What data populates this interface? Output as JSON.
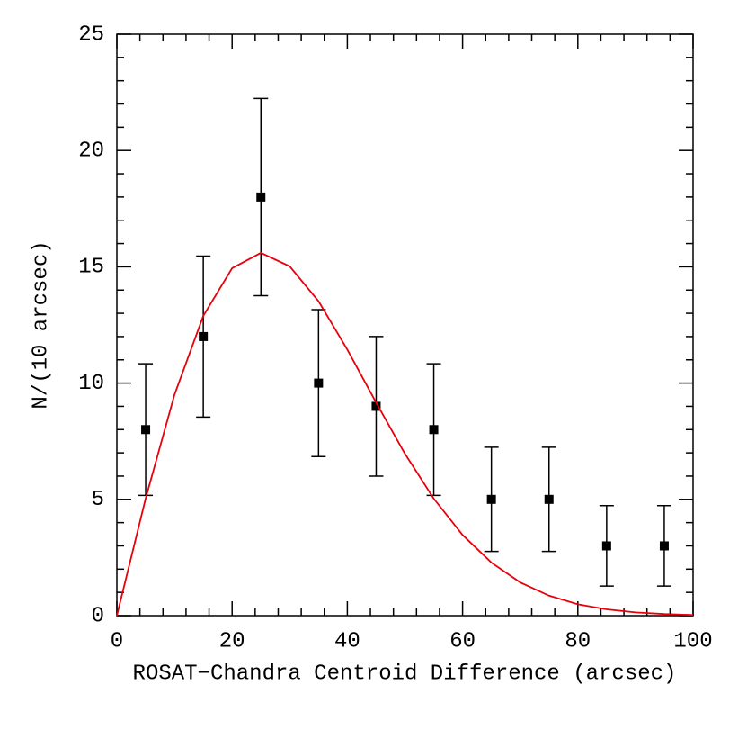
{
  "chart_data": {
    "type": "scatter",
    "xlabel": "ROSAT−Chandra Centroid Difference (arcsec)",
    "ylabel": "N/(10 arcsec)",
    "xlim": [
      0,
      100
    ],
    "xticks": [
      0,
      20,
      40,
      60,
      80,
      100
    ],
    "ylim": [
      0,
      25
    ],
    "yticks": [
      0,
      5,
      10,
      15,
      20,
      25
    ],
    "series": [
      {
        "type": "scatter",
        "color": "#000000",
        "x": [
          5,
          15,
          25,
          35,
          45,
          55,
          65,
          75,
          85,
          95
        ],
        "values": [
          8,
          12,
          18,
          10,
          9,
          8,
          5,
          5,
          3,
          3
        ],
        "errors": [
          2.83,
          3.46,
          4.24,
          3.16,
          3,
          2.83,
          2.24,
          2.24,
          1.73,
          1.73
        ]
      },
      {
        "type": "line",
        "color": "#e8000b",
        "x": [
          0,
          5,
          10,
          15,
          20,
          25,
          30,
          35,
          40,
          45,
          50,
          55,
          60,
          65,
          70,
          75,
          80,
          85,
          90,
          95,
          100
        ],
        "values": [
          0,
          5.04,
          9.5,
          12.89,
          14.94,
          15.6,
          15.02,
          13.52,
          11.44,
          9.16,
          6.96,
          5.03,
          3.47,
          2.28,
          1.43,
          0.86,
          0.49,
          0.27,
          0.14,
          0.07,
          0.03
        ]
      }
    ]
  }
}
